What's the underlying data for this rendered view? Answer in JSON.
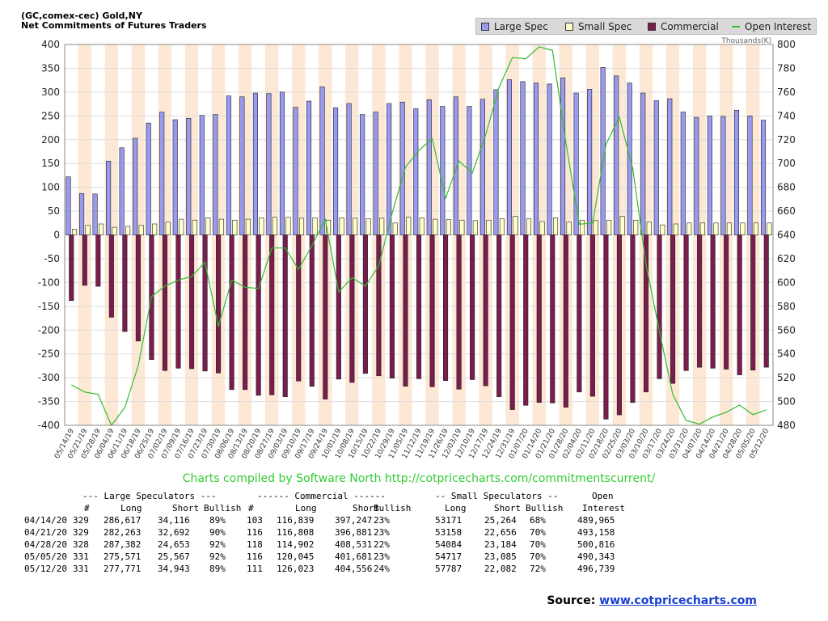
{
  "header": {
    "line1": "(GC,comex-cec) Gold,NY",
    "line2": "Net Commitments of Futures Traders"
  },
  "legend": [
    {
      "label": "Large Spec",
      "color": "#9999ee"
    },
    {
      "label": "Small Spec",
      "color": "#ffffcc"
    },
    {
      "label": "Commercial",
      "color": "#7a1d4c"
    },
    {
      "label": "Open Interest",
      "color": "#33bb33"
    }
  ],
  "chart_data": {
    "type": "bar",
    "y2_unit_label": "Thousands(K)",
    "credit": "Charts compiled by Software North  http://cotpricecharts.com/commitmentscurrent/",
    "ylim": [
      -400,
      400
    ],
    "y_ticks": [
      -400,
      -350,
      -300,
      -250,
      -200,
      -150,
      -100,
      -50,
      0,
      50,
      100,
      150,
      200,
      250,
      300,
      350,
      400
    ],
    "y2lim": [
      480,
      800
    ],
    "y2_ticks": [
      480,
      500,
      520,
      540,
      560,
      580,
      600,
      620,
      640,
      660,
      680,
      700,
      720,
      740,
      760,
      780,
      800
    ],
    "categories": [
      "05/14/19",
      "05/21/19",
      "05/28/19",
      "06/04/19",
      "06/11/19",
      "06/18/19",
      "06/25/19",
      "07/02/19",
      "07/09/19",
      "07/16/19",
      "07/23/19",
      "07/30/19",
      "08/06/19",
      "08/13/19",
      "08/20/19",
      "08/27/19",
      "09/03/19",
      "09/10/19",
      "09/17/19",
      "09/24/19",
      "10/01/19",
      "10/08/19",
      "10/15/19",
      "10/22/19",
      "10/29/19",
      "11/05/19",
      "11/12/19",
      "11/19/19",
      "11/26/19",
      "12/03/19",
      "12/10/19",
      "12/17/19",
      "12/24/19",
      "12/31/19",
      "01/07/20",
      "01/14/20",
      "01/21/20",
      "01/28/20",
      "02/04/20",
      "02/11/20",
      "02/18/20",
      "02/25/20",
      "03/03/20",
      "03/10/20",
      "03/17/20",
      "03/24/20",
      "03/31/20",
      "04/07/20",
      "04/14/20",
      "04/21/20",
      "04/28/20",
      "05/05/20",
      "05/12/20"
    ],
    "series": [
      {
        "name": "Large Spec",
        "axis": "left",
        "color": "#9999ee",
        "values": [
          122,
          87,
          86,
          155,
          183,
          203,
          235,
          258,
          242,
          245,
          251,
          253,
          292,
          290,
          298,
          297,
          300,
          268,
          281,
          311,
          267,
          276,
          253,
          258,
          276,
          279,
          265,
          284,
          270,
          290,
          270,
          285,
          305,
          326,
          322,
          319,
          317,
          330,
          298,
          306,
          352,
          334,
          319,
          298,
          282,
          286,
          258,
          247,
          250,
          249,
          262,
          250,
          241
        ]
      },
      {
        "name": "Small Spec",
        "axis": "left",
        "color": "#ffffcc",
        "values": [
          12,
          20,
          23,
          16,
          18,
          20,
          23,
          27,
          33,
          31,
          36,
          33,
          31,
          33,
          36,
          37,
          37,
          35,
          36,
          31,
          36,
          35,
          34,
          35,
          25,
          37,
          36,
          33,
          32,
          31,
          30,
          31,
          34,
          39,
          34,
          28,
          36,
          27,
          31,
          30,
          31,
          39,
          31,
          27,
          21,
          23,
          25,
          25,
          25,
          25,
          25,
          25,
          25
        ]
      },
      {
        "name": "Commercial",
        "axis": "left",
        "color": "#7a1d4c",
        "values": [
          -138,
          -106,
          -108,
          -173,
          -203,
          -223,
          -262,
          -285,
          -280,
          -281,
          -286,
          -290,
          -325,
          -325,
          -337,
          -336,
          -340,
          -307,
          -318,
          -345,
          -303,
          -310,
          -291,
          -296,
          -301,
          -318,
          -302,
          -319,
          -306,
          -324,
          -304,
          -317,
          -340,
          -367,
          -358,
          -352,
          -353,
          -362,
          -330,
          -339,
          -387,
          -378,
          -352,
          -330,
          -302,
          -312,
          -285,
          -278,
          -280,
          -282,
          -294,
          -284,
          -278
        ]
      },
      {
        "name": "Open Interest",
        "axis": "right",
        "color": "#33bb33",
        "values": [
          514,
          508,
          506,
          480,
          495,
          530,
          588,
          597,
          602,
          605,
          617,
          563,
          602,
          596,
          595,
          629,
          629,
          611,
          631,
          653,
          592,
          604,
          597,
          614,
          658,
          697,
          711,
          721,
          671,
          702,
          692,
          724,
          764,
          789,
          788,
          798,
          795,
          718,
          649,
          650,
          716,
          739,
          696,
          615,
          559,
          506,
          484,
          481,
          487,
          491,
          497,
          489,
          493
        ]
      }
    ]
  },
  "table": {
    "group_headers": {
      "large": "--- Large Speculators ---",
      "commercial": "------ Commercial ------",
      "small": "-- Small Speculators --",
      "oi": "Open"
    },
    "col_headers": {
      "lnum": "#",
      "llong": "Long",
      "lshort": "Short",
      "lbull": "Bullish",
      "cnum": "#",
      "clong": "Long",
      "cshort": "Short",
      "cbull": "Bullish",
      "slong": "Long",
      "sshort": "Short",
      "sbull": "Bullish",
      "oi": "Interest"
    },
    "rows": [
      {
        "date": "04/14/20",
        "lnum": "329",
        "llong": "286,617",
        "lshort": "34,116",
        "lbull": "89%",
        "cnum": "103",
        "clong": "116,839",
        "cshort": "397,247",
        "cbull": "23%",
        "slong": "53171",
        "sshort": "25,264",
        "sbull": "68%",
        "oi": "489,965"
      },
      {
        "date": "04/21/20",
        "lnum": "329",
        "llong": "282,263",
        "lshort": "32,692",
        "lbull": "90%",
        "cnum": "116",
        "clong": "116,808",
        "cshort": "396,881",
        "cbull": "23%",
        "slong": "53158",
        "sshort": "22,656",
        "sbull": "70%",
        "oi": "493,158"
      },
      {
        "date": "04/28/20",
        "lnum": "328",
        "llong": "287,382",
        "lshort": "24,653",
        "lbull": "92%",
        "cnum": "118",
        "clong": "114,902",
        "cshort": "408,531",
        "cbull": "22%",
        "slong": "54084",
        "sshort": "23,184",
        "sbull": "70%",
        "oi": "500,816"
      },
      {
        "date": "05/05/20",
        "lnum": "331",
        "llong": "275,571",
        "lshort": "25,567",
        "lbull": "92%",
        "cnum": "116",
        "clong": "120,045",
        "cshort": "401,681",
        "cbull": "23%",
        "slong": "54717",
        "sshort": "23,085",
        "sbull": "70%",
        "oi": "490,343"
      },
      {
        "date": "05/12/20",
        "lnum": "331",
        "llong": "277,771",
        "lshort": "34,943",
        "lbull": "89%",
        "cnum": "111",
        "clong": "126,023",
        "cshort": "404,556",
        "cbull": "24%",
        "slong": "57787",
        "sshort": "22,082",
        "sbull": "72%",
        "oi": "496,739"
      }
    ]
  },
  "source": {
    "label": "Source: ",
    "link": "www.cotpricecharts.com"
  }
}
